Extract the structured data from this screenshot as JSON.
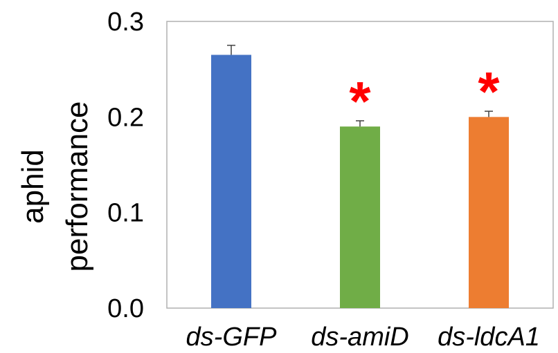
{
  "chart_data": {
    "type": "bar",
    "title": "",
    "xlabel": "",
    "ylabel_lines": [
      "aphid",
      "performance"
    ],
    "categories": [
      "ds-GFP",
      "ds-amiD",
      "ds-ldcA1"
    ],
    "values": [
      0.265,
      0.19,
      0.2
    ],
    "errors": [
      0.01,
      0.006,
      0.006
    ],
    "colors": [
      "#4472c4",
      "#70ad47",
      "#ed7d31"
    ],
    "significance": [
      "",
      "*",
      "*"
    ],
    "significance_color": "#ff0000",
    "ylim": [
      0,
      0.3
    ],
    "yticks": [
      "0.0",
      "0.1",
      "0.2",
      "0.3"
    ],
    "grid": false,
    "legend": "none"
  }
}
